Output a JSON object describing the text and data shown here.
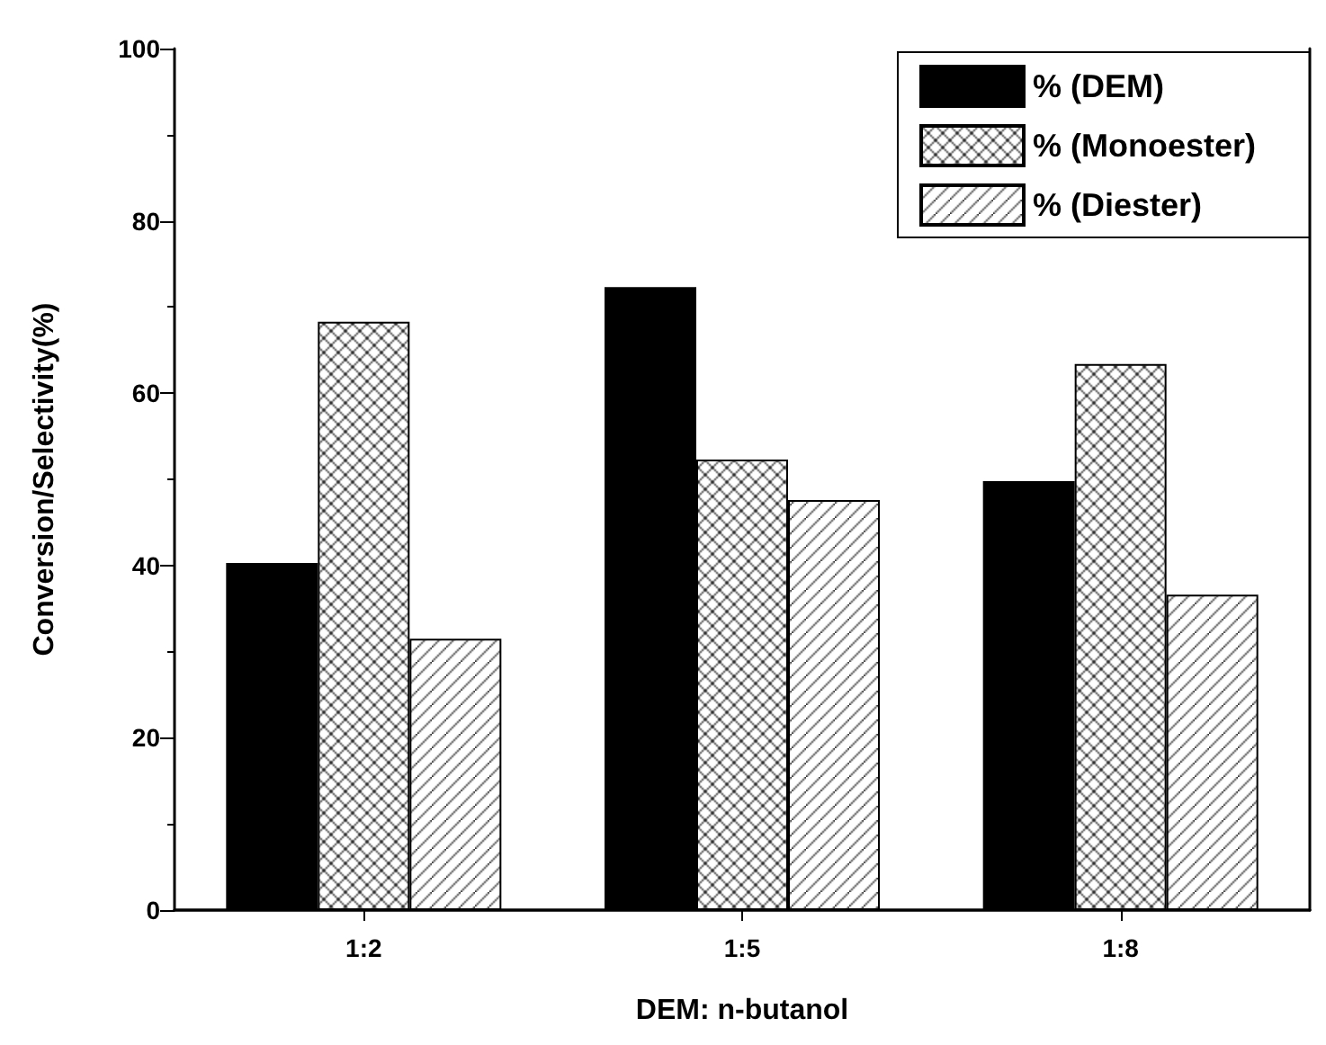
{
  "chart_data": {
    "type": "bar",
    "xlabel": "DEM: n-butanol",
    "ylabel": "Conversion/Selectivity(%)",
    "categories": [
      "1:2",
      "1:5",
      "1:8"
    ],
    "series": [
      {
        "name": "% (DEM)",
        "color": "#000000",
        "values": [
          40.3,
          72.3,
          49.8
        ]
      },
      {
        "name": "% (Monoester)",
        "color": "#000000",
        "values": [
          68.3,
          52.3,
          63.4
        ]
      },
      {
        "name": "% (Diester)",
        "color": "#000000",
        "values": [
          31.5,
          47.6,
          36.6
        ]
      }
    ],
    "ylim": [
      0,
      100
    ],
    "yticks": [
      0,
      20,
      40,
      60,
      80,
      100
    ],
    "grid": false,
    "legend": "top right"
  }
}
